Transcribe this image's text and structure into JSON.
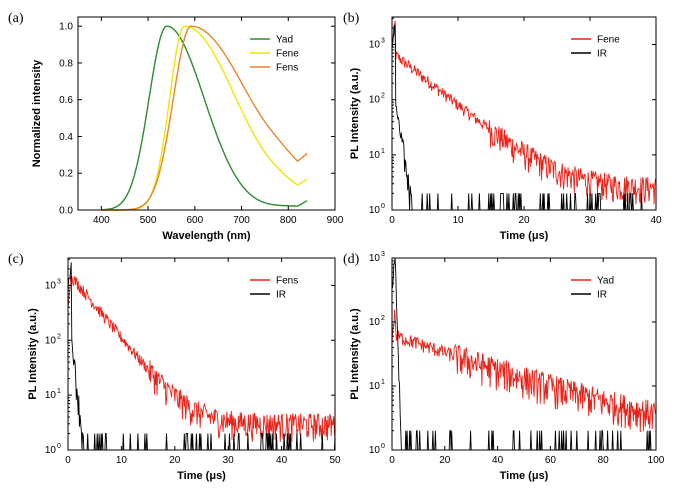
{
  "chart_data": [
    {
      "panel": "(a)",
      "type": "line",
      "xlabel": "Wavelength (nm)",
      "ylabel": "Normalized intensity",
      "xlim": [
        350,
        900
      ],
      "ylim": [
        0,
        1.05
      ],
      "xticks": [
        400,
        500,
        600,
        700,
        800,
        900
      ],
      "yticks": [
        0.0,
        0.2,
        0.4,
        0.6,
        0.8,
        1.0
      ],
      "log_y": false,
      "legend": "top-right",
      "series": [
        {
          "name": "Yad",
          "color": "#2e8b2e",
          "peak": 540,
          "sigma_left": 38,
          "sigma_right": 80,
          "x_start": 400,
          "x_end": 840,
          "tail": 0.02
        },
        {
          "name": "Fene",
          "color": "#f2e600",
          "peak": 578,
          "sigma_left": 32,
          "sigma_right": 110,
          "x_start": 400,
          "x_end": 840,
          "tail": 0.05
        },
        {
          "name": "Fens",
          "color": "#e8862a",
          "peak": 592,
          "sigma_left": 38,
          "sigma_right": 125,
          "x_start": 400,
          "x_end": 840,
          "tail": 0.08
        }
      ]
    },
    {
      "panel": "(b)",
      "type": "line",
      "xlabel": "Time (μs)",
      "ylabel": "PL Intensity (a.u.)",
      "xlim": [
        0,
        40
      ],
      "ylim_log10": [
        0,
        3.5
      ],
      "xticks": [
        0,
        10,
        20,
        30,
        40
      ],
      "yticks": [
        "10^0",
        "10^1",
        "10^2",
        "10^3"
      ],
      "log_y": true,
      "legend": "top-right",
      "series": [
        {
          "name": "Fene",
          "color": "#e8231a",
          "peak": 2500,
          "decay_tau": 4.5,
          "amplitude": 650,
          "floor": 2.5
        },
        {
          "name": "IR",
          "color": "#000000",
          "peak": 2500,
          "decay_tau": 0.6,
          "amplitude": 90,
          "floor": 0
        }
      ]
    },
    {
      "panel": "(c)",
      "type": "line",
      "xlabel": "Time (μs)",
      "ylabel": "PL Intensity (a.u.)",
      "xlim": [
        0,
        50
      ],
      "ylim_log10": [
        0,
        3.5
      ],
      "xticks": [
        0,
        10,
        20,
        30,
        40,
        50
      ],
      "yticks": [
        "10^0",
        "10^1",
        "10^2",
        "10^3"
      ],
      "log_y": true,
      "legend": "top-right",
      "series": [
        {
          "name": "Fens",
          "color": "#e8231a",
          "peak": 1500,
          "decay_tau": 3.6,
          "amplitude": 1500,
          "floor": 3
        },
        {
          "name": "IR",
          "color": "#000000",
          "peak": 2500,
          "decay_tau": 0.5,
          "amplitude": 120,
          "floor": 0
        }
      ]
    },
    {
      "panel": "(d)",
      "type": "line",
      "xlabel": "Time (μs)",
      "ylabel": "PL Intensity (a.u.)",
      "xlim": [
        0,
        100
      ],
      "ylim_log10": [
        0,
        3
      ],
      "xticks": [
        0,
        20,
        40,
        60,
        80,
        100
      ],
      "yticks": [
        "10^0",
        "10^1",
        "10^2",
        "10^3"
      ],
      "log_y": true,
      "legend": "top-right",
      "series": [
        {
          "name": "Yad",
          "color": "#e8231a",
          "peak": 150,
          "decay_tau": 30,
          "amplitude": 60,
          "floor": 1.5
        },
        {
          "name": "IR",
          "color": "#000000",
          "peak": 900,
          "decay_tau": 0.35,
          "amplitude": 900,
          "floor": 0
        }
      ]
    }
  ]
}
